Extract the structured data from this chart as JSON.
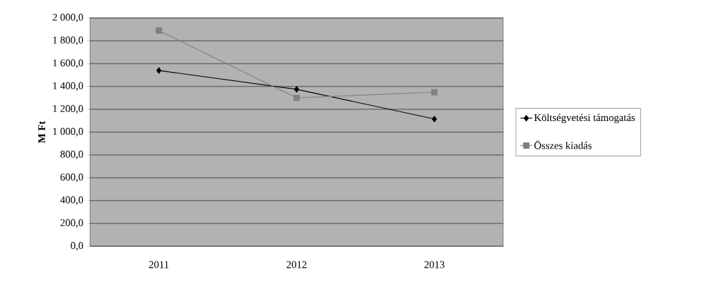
{
  "chart_data": {
    "type": "line",
    "ylabel": "M Ft",
    "categories": [
      "2011",
      "2012",
      "2013"
    ],
    "series": [
      {
        "name": "Költségvetési támogatás",
        "color": "#000000",
        "values": [
          1540,
          1375,
          1115
        ],
        "marker": "diamond"
      },
      {
        "name": "Összes kiadás",
        "color": "#808080",
        "values": [
          1890,
          1300,
          1350
        ],
        "marker": "square"
      }
    ],
    "ylim": [
      0,
      2000
    ],
    "yticks": [
      {
        "value": 0,
        "label": "0,0"
      },
      {
        "value": 200,
        "label": "200,0"
      },
      {
        "value": 400,
        "label": "400,0"
      },
      {
        "value": 600,
        "label": "600,0"
      },
      {
        "value": 800,
        "label": "800,0"
      },
      {
        "value": 1000,
        "label": "1 000,0"
      },
      {
        "value": 1200,
        "label": "1 200,0"
      },
      {
        "value": 1400,
        "label": "1 400,0"
      },
      {
        "value": 1600,
        "label": "1 600,0"
      },
      {
        "value": 1800,
        "label": "1 800,0"
      },
      {
        "value": 2000,
        "label": "2 000,0"
      }
    ],
    "grid": "y",
    "legend": "right",
    "line_style": "solid"
  }
}
